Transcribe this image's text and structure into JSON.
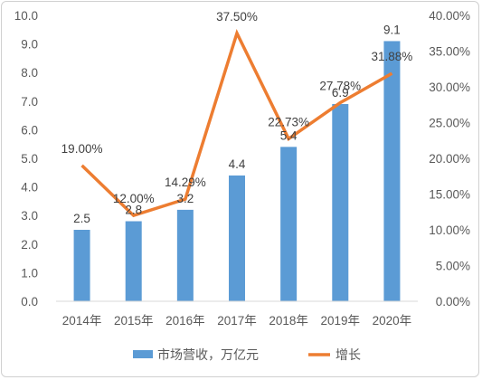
{
  "chart_data": {
    "type": "bar+line",
    "categories": [
      "2014年",
      "2015年",
      "2016年",
      "2017年",
      "2018年",
      "2019年",
      "2020年"
    ],
    "series": [
      {
        "name": "市场营收，万亿元",
        "type": "bar",
        "axis": "left",
        "values": [
          2.5,
          2.8,
          3.2,
          4.4,
          5.4,
          6.9,
          9.1
        ],
        "labels": [
          "2.5",
          "2.8",
          "3.2",
          "4.4",
          "5.4",
          "6.9",
          "9.1"
        ],
        "color": "#5b9bd5"
      },
      {
        "name": "增长",
        "type": "line",
        "axis": "right",
        "values": [
          19.0,
          12.0,
          14.29,
          37.5,
          22.73,
          27.78,
          31.88
        ],
        "labels": [
          "19.00%",
          "12.00%",
          "14.29%",
          "37.50%",
          "22.73%",
          "27.78%",
          "31.88%"
        ],
        "color": "#ed7d31"
      }
    ],
    "y_left": {
      "range": [
        0,
        10
      ],
      "ticks": [
        "0.0",
        "1.0",
        "2.0",
        "3.0",
        "4.0",
        "5.0",
        "6.0",
        "7.0",
        "8.0",
        "9.0",
        "10.0"
      ]
    },
    "y_right": {
      "range": [
        0,
        40
      ],
      "ticks": [
        "0.00%",
        "5.00%",
        "10.00%",
        "15.00%",
        "20.00%",
        "25.00%",
        "30.00%",
        "35.00%",
        "40.00%"
      ]
    },
    "grid": false,
    "legend_position": "bottom"
  }
}
